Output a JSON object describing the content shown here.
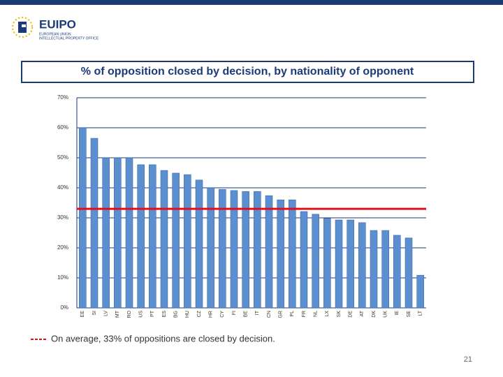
{
  "header": {
    "brand": "EUIPO",
    "org_line1": "EUROPEAN UNION",
    "org_line2": "INTELLECTUAL PROPERTY OFFICE"
  },
  "chart_data": {
    "type": "bar",
    "title": "% of opposition closed by decision, by nationality of opponent",
    "categories": [
      "EE",
      "SI",
      "LV",
      "MT",
      "RO",
      "US",
      "PT",
      "ES",
      "BG",
      "HU",
      "CZ",
      "HR",
      "CY",
      "FI",
      "BE",
      "IT",
      "CN",
      "GR",
      "PL",
      "FR",
      "NL",
      "LX",
      "SK",
      "DE",
      "AT",
      "DK",
      "UK",
      "IE",
      "SE",
      "LT"
    ],
    "values": [
      60,
      56.5,
      50,
      50,
      50,
      47.7,
      47.7,
      45.8,
      44.9,
      44.4,
      42.6,
      40,
      39.5,
      39.1,
      38.8,
      38.8,
      37.4,
      36,
      36,
      32.1,
      31.2,
      29.8,
      29.3,
      29.3,
      28.4,
      25.8,
      25.8,
      24.2,
      23.3,
      10.9
    ],
    "color": "#5b8fd0",
    "ylim": [
      0,
      70
    ],
    "yticks": [
      {
        "value": 0,
        "label": "0%"
      },
      {
        "value": 10,
        "label": "10%"
      },
      {
        "value": 20,
        "label": "20%"
      },
      {
        "value": 30,
        "label": "30%"
      },
      {
        "value": 40,
        "label": "40%"
      },
      {
        "value": 50,
        "label": "50%"
      },
      {
        "value": 60,
        "label": "60%"
      },
      {
        "value": 70,
        "label": "70%"
      }
    ],
    "grid": true,
    "reference_line": {
      "value": 33,
      "color": "#e0111b",
      "label": "On average, 33% of oppositions are closed by decision."
    }
  },
  "page_number": "21"
}
